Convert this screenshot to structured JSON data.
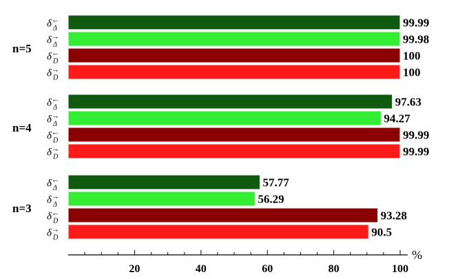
{
  "chart_data": {
    "type": "bar",
    "orientation": "horizontal",
    "x_unit": "%",
    "xlim": [
      0,
      100
    ],
    "xticks": [
      20,
      40,
      60,
      80,
      100
    ],
    "groups": [
      "n=5",
      "n=4",
      "n=3"
    ],
    "series": [
      {
        "name": "δΔ←",
        "values": [
          99.99,
          97.63,
          57.77
        ]
      },
      {
        "name": "δΔ→",
        "values": [
          99.98,
          94.27,
          56.29
        ]
      },
      {
        "name": "δD←",
        "values": [
          100,
          99.99,
          93.28
        ]
      },
      {
        "name": "δD→",
        "values": [
          100,
          99.99,
          90.5
        ]
      }
    ],
    "value_labels": [
      [
        "99.99",
        "99.98",
        "100",
        "100"
      ],
      [
        "97.63",
        "94.27",
        "99.99",
        "99.99"
      ],
      [
        "57.77",
        "56.29",
        "93.28",
        "90.5"
      ]
    ],
    "series_labels": [
      {
        "base": "δ",
        "sub": "Δ",
        "arrow": "←"
      },
      {
        "base": "δ",
        "sub": "Δ",
        "arrow": "→"
      },
      {
        "base": "δ",
        "sub": "D",
        "arrow": "←"
      },
      {
        "base": "δ",
        "sub": "D",
        "arrow": "→"
      }
    ],
    "colors": [
      "#0f5a0f",
      "#33ee33",
      "#8b0000",
      "#ff1a1a"
    ],
    "legend": "none",
    "grid": false
  }
}
